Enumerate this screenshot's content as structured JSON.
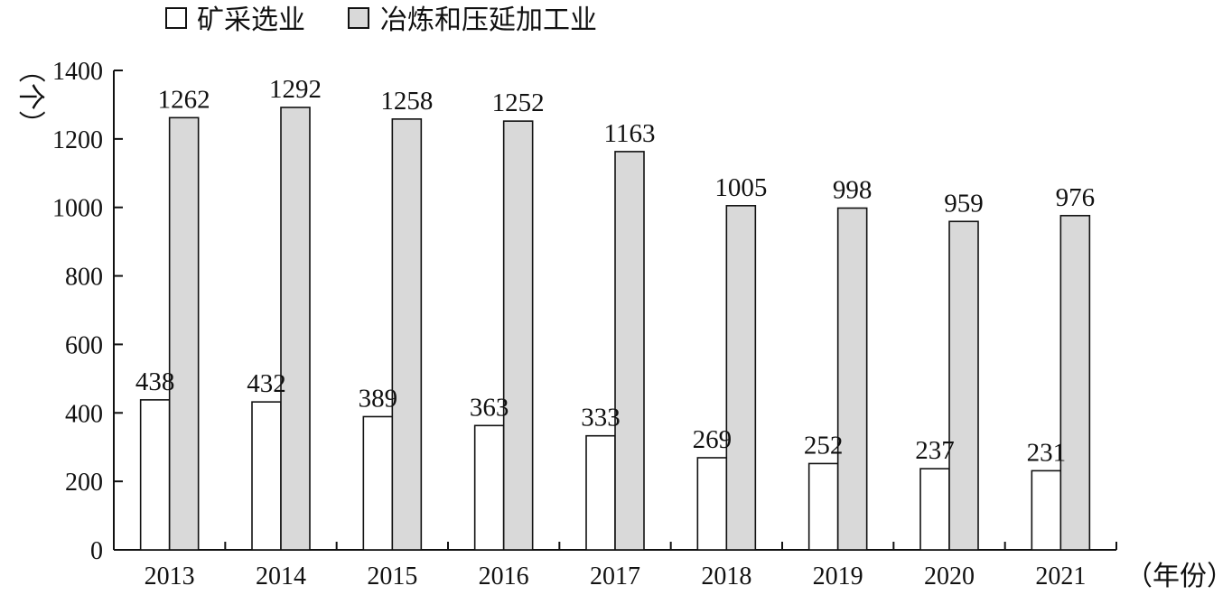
{
  "chart_data": {
    "type": "bar",
    "title": "",
    "xlabel": "（年份）",
    "ylabel": "（个）",
    "categories": [
      "2013",
      "2014",
      "2015",
      "2016",
      "2017",
      "2018",
      "2019",
      "2020",
      "2021"
    ],
    "series": [
      {
        "name": "矿采选业",
        "values": [
          438,
          432,
          389,
          363,
          333,
          269,
          252,
          237,
          231
        ],
        "color": "#ffffff"
      },
      {
        "name": "冶炼和压延加工业",
        "values": [
          1262,
          1292,
          1258,
          1252,
          1163,
          1005,
          998,
          959,
          976
        ],
        "color": "#d9d9d9"
      }
    ],
    "ylim": [
      0,
      1400
    ],
    "yticks": [
      0,
      200,
      400,
      600,
      800,
      1000,
      1200,
      1400
    ],
    "grid": false,
    "legend": "top"
  }
}
